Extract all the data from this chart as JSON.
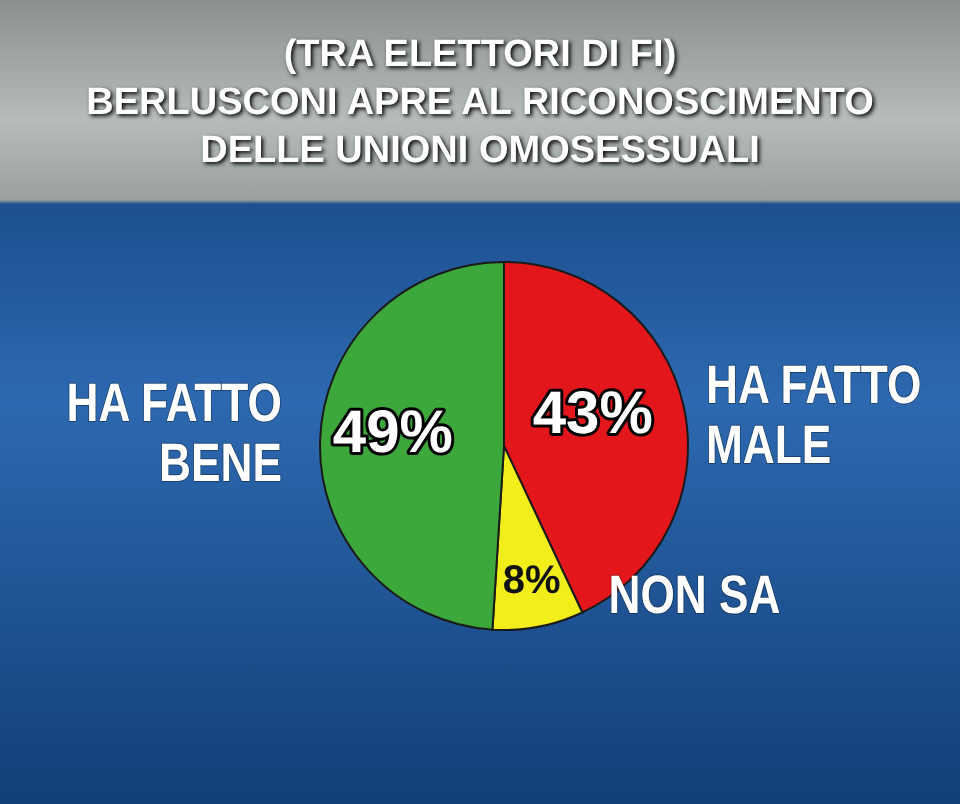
{
  "chart_data": {
    "type": "pie",
    "title": "(TRA ELETTORI DI FI)\nBERLUSCONI APRE AL RICONOSCIMENTO\nDELLE UNIONI OMOSESSUALI",
    "categories": [
      "HA FATTO MALE",
      "NON SA",
      "HA FATTO BENE"
    ],
    "values": [
      43,
      8,
      49
    ],
    "colors": [
      "#e3161b",
      "#f2ee1c",
      "#3ca83c"
    ],
    "value_labels": [
      "43%",
      "8%",
      "49%"
    ]
  }
}
